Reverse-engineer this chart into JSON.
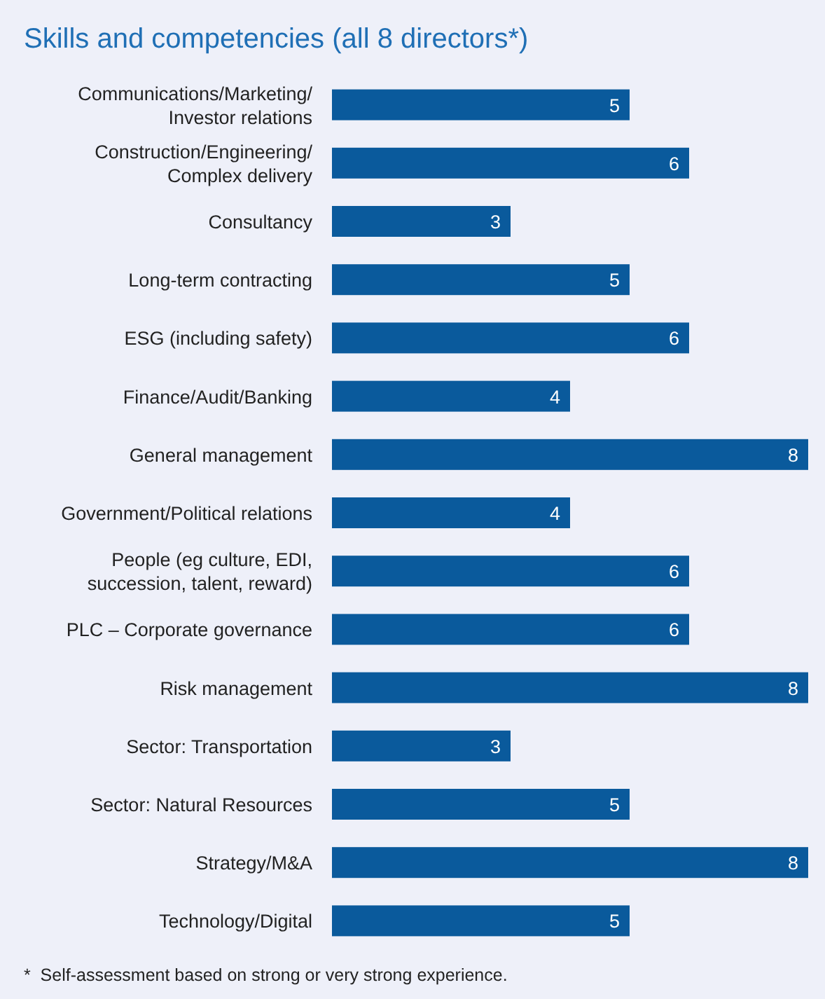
{
  "chart_data": {
    "type": "bar",
    "orientation": "horizontal",
    "title": "Skills and competencies (all 8 directors*)",
    "categories": [
      "Communications/Marketing/ Investor relations",
      "Construction/Engineering/ Complex delivery",
      "Consultancy",
      "Long-term contracting",
      "ESG (including safety)",
      "Finance/Audit/Banking",
      "General management",
      "Government/Political relations",
      "People (eg culture, EDI, succession, talent, reward)",
      "PLC – Corporate governance",
      "Risk management",
      "Sector: Transportation",
      "Sector: Natural Resources",
      "Strategy/M&A",
      "Technology/Digital"
    ],
    "values": [
      5,
      6,
      3,
      5,
      6,
      4,
      8,
      4,
      6,
      6,
      8,
      3,
      5,
      8,
      5
    ],
    "color": "#0a5a9c",
    "data_labels": true,
    "annotations": [
      "*  Self-assessment based on strong or very strong experience."
    ]
  }
}
